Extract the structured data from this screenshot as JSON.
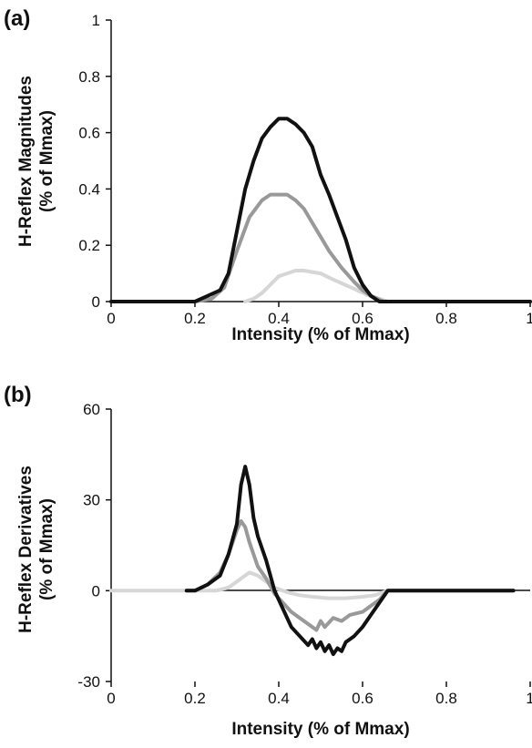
{
  "chart_data": [
    {
      "panel_label": "(a)",
      "type": "line",
      "xlabel": "Intensity (% of Mmax)",
      "ylabel_line1": "H-Reflex Magnitudes",
      "ylabel_line2": "(% of Mmax)",
      "xlim": [
        0,
        1
      ],
      "ylim": [
        0,
        1
      ],
      "xticks": [
        0,
        0.2,
        0.4,
        0.6,
        0.8,
        1
      ],
      "xtick_labels": [
        "0",
        "0.2",
        "0.4",
        "0.6",
        "0.8",
        "1"
      ],
      "yticks": [
        0,
        0.2,
        0.4,
        0.6,
        0.8,
        1
      ],
      "ytick_labels": [
        "0",
        "0.2",
        "0.4",
        "0.6",
        "0.8",
        "1"
      ],
      "grid": false,
      "series": [
        {
          "color": "#111111",
          "x": [
            0.0,
            0.2,
            0.23,
            0.26,
            0.28,
            0.3,
            0.32,
            0.34,
            0.36,
            0.38,
            0.4,
            0.42,
            0.44,
            0.46,
            0.48,
            0.5,
            0.52,
            0.54,
            0.56,
            0.58,
            0.6,
            0.62,
            0.64,
            1.0
          ],
          "y": [
            0.0,
            0.0,
            0.02,
            0.04,
            0.1,
            0.25,
            0.4,
            0.5,
            0.58,
            0.62,
            0.65,
            0.65,
            0.63,
            0.6,
            0.55,
            0.45,
            0.38,
            0.3,
            0.22,
            0.12,
            0.06,
            0.02,
            0.0,
            0.0
          ]
        },
        {
          "color": "#999999",
          "x": [
            0.0,
            0.2,
            0.24,
            0.27,
            0.3,
            0.33,
            0.36,
            0.38,
            0.4,
            0.42,
            0.44,
            0.46,
            0.48,
            0.5,
            0.52,
            0.55,
            0.58,
            0.6,
            0.62,
            0.65,
            1.0
          ],
          "y": [
            0.0,
            0.0,
            0.01,
            0.05,
            0.18,
            0.3,
            0.36,
            0.38,
            0.38,
            0.38,
            0.36,
            0.33,
            0.28,
            0.23,
            0.18,
            0.12,
            0.07,
            0.04,
            0.02,
            0.0,
            0.0
          ]
        },
        {
          "color": "#d6d6d6",
          "x": [
            0.32,
            0.34,
            0.36,
            0.38,
            0.4,
            0.42,
            0.44,
            0.46,
            0.48,
            0.5,
            0.52,
            0.55,
            0.58,
            0.61,
            0.64,
            0.66
          ],
          "y": [
            0.0,
            0.01,
            0.03,
            0.06,
            0.09,
            0.1,
            0.11,
            0.11,
            0.105,
            0.1,
            0.085,
            0.065,
            0.045,
            0.025,
            0.01,
            0.0
          ]
        }
      ]
    },
    {
      "panel_label": "(b)",
      "type": "line",
      "xlabel": "Intensity (% of Mmax)",
      "ylabel_line1": "H-Reflex Derivatives",
      "ylabel_line2": "(% of Mmax)",
      "xlim": [
        0,
        1
      ],
      "ylim": [
        -30,
        60
      ],
      "xticks": [
        0,
        0.2,
        0.4,
        0.6,
        0.8,
        1
      ],
      "xtick_labels": [
        "0",
        "0.2",
        "0.4",
        "0.6",
        "0.8",
        "1"
      ],
      "yticks": [
        -30,
        0,
        30,
        60
      ],
      "ytick_labels": [
        "-30",
        "0",
        "30",
        "60"
      ],
      "grid": false,
      "series": [
        {
          "color": "#111111",
          "x": [
            0.18,
            0.2,
            0.23,
            0.26,
            0.28,
            0.3,
            0.31,
            0.32,
            0.33,
            0.34,
            0.35,
            0.37,
            0.39,
            0.41,
            0.43,
            0.45,
            0.47,
            0.48,
            0.49,
            0.5,
            0.51,
            0.52,
            0.53,
            0.54,
            0.55,
            0.56,
            0.58,
            0.6,
            0.62,
            0.64,
            0.66,
            0.96
          ],
          "y": [
            0,
            0,
            2,
            5,
            12,
            22,
            35,
            41,
            35,
            24,
            18,
            10,
            0,
            -6,
            -12,
            -15,
            -18,
            -16,
            -19,
            -17,
            -20,
            -18,
            -21,
            -19,
            -20,
            -17,
            -15,
            -12,
            -8,
            -4,
            0,
            0
          ]
        },
        {
          "color": "#999999",
          "x": [
            0.18,
            0.2,
            0.23,
            0.26,
            0.28,
            0.3,
            0.31,
            0.32,
            0.33,
            0.34,
            0.35,
            0.37,
            0.39,
            0.41,
            0.43,
            0.45,
            0.47,
            0.49,
            0.5,
            0.51,
            0.53,
            0.55,
            0.57,
            0.6,
            0.62,
            0.64,
            0.66,
            0.96
          ],
          "y": [
            0,
            0,
            2,
            6,
            12,
            20,
            23,
            21,
            16,
            12,
            8,
            4,
            -1,
            -4,
            -7,
            -9,
            -11,
            -13,
            -10,
            -12,
            -9,
            -10,
            -8,
            -7,
            -5,
            -3,
            0,
            0
          ]
        },
        {
          "color": "#d6d6d6",
          "x": [
            0.0,
            0.25,
            0.28,
            0.31,
            0.33,
            0.35,
            0.37,
            0.39,
            0.42,
            0.45,
            0.48,
            0.52,
            0.56,
            0.6,
            0.63,
            0.66,
            0.96
          ],
          "y": [
            0,
            0,
            1,
            4,
            6,
            5,
            3,
            1,
            -0.5,
            -1.5,
            -2,
            -2.5,
            -2.5,
            -2,
            -1.5,
            0,
            0
          ]
        }
      ]
    }
  ]
}
